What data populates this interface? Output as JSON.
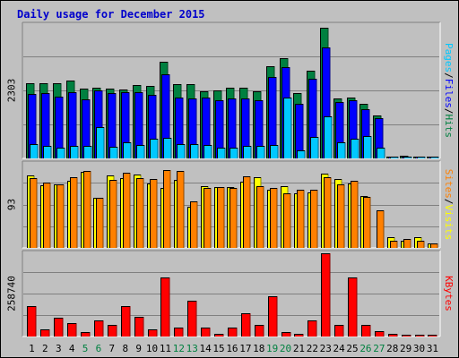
{
  "chart_data": {
    "type": "bar",
    "title": "Daily usage for December 2015",
    "days": [
      "1",
      "2",
      "3",
      "4",
      "5",
      "6",
      "7",
      "8",
      "9",
      "10",
      "11",
      "12",
      "13",
      "14",
      "15",
      "16",
      "17",
      "18",
      "19",
      "20",
      "21",
      "22",
      "23",
      "24",
      "25",
      "26",
      "27",
      "28",
      "29",
      "30",
      "31"
    ],
    "weekend_days": [
      "5",
      "6",
      "12",
      "13",
      "19",
      "20",
      "26",
      "27"
    ],
    "panels": [
      {
        "id": "hits",
        "ymax": 2303,
        "ymax_label": "2303",
        "legend": [
          {
            "text": "Pages",
            "color": "#00c8ff"
          },
          {
            "text": "/",
            "color": "#000000"
          },
          {
            "text": "Files",
            "color": "#0000ff"
          },
          {
            "text": "/",
            "color": "#000000"
          },
          {
            "text": "Hits",
            "color": "#008040"
          }
        ],
        "series": [
          {
            "name": "Hits",
            "color": "#008040",
            "values": [
              1297,
              1297,
              1297,
              1343,
              1204,
              1220,
              1204,
              1189,
              1265,
              1251,
              1666,
              1281,
              1281,
              1159,
              1175,
              1220,
              1220,
              1159,
              1590,
              1731,
              1128,
              1514,
              2263,
              1037,
              1051,
              948,
              744,
              31,
              47,
              31,
              27
            ]
          },
          {
            "name": "Files",
            "color": "#0000ff",
            "values": [
              1112,
              1128,
              1067,
              1143,
              1021,
              1174,
              1128,
              1143,
              1143,
              1097,
              1455,
              1052,
              1036,
              1052,
              1006,
              1036,
              1036,
              1006,
              1405,
              1573,
              947,
              1373,
              1923,
              980,
              1006,
              853,
              689,
              21,
              21,
              21,
              15
            ]
          },
          {
            "name": "Pages",
            "color": "#00c8ff",
            "values": [
              246,
              215,
              184,
              215,
              215,
              544,
              199,
              276,
              230,
              337,
              358,
              246,
              246,
              230,
              184,
              184,
              215,
              215,
              230,
              1052,
              138,
              369,
              720,
              276,
              337,
              382,
              182,
              10,
              15,
              10,
              8
            ]
          }
        ]
      },
      {
        "id": "visits",
        "ymax": 93,
        "ymax_label": "93",
        "legend": [
          {
            "text": "Sites",
            "color": "#ff8000"
          },
          {
            "text": "/",
            "color": "#000000"
          },
          {
            "text": "Visits",
            "color": "#ffff00"
          }
        ],
        "series": [
          {
            "name": "Visits",
            "color": "#ffff00",
            "values": [
              80,
              69,
              70,
              74,
              84,
              55,
              80,
              77,
              81,
              71,
              66,
              75,
              46,
              68,
              67,
              67,
              73,
              78,
              64,
              68,
              60,
              61,
              82,
              76,
              71,
              57,
              0,
              12,
              8,
              12,
              5
            ]
          },
          {
            "name": "Sites",
            "color": "#ff8000",
            "values": [
              77,
              72,
              70,
              78,
              85,
              55,
              75,
              83,
              77,
              76,
              86,
              85,
              51,
              66,
              67,
              66,
              79,
              68,
              66,
              60,
              64,
              64,
              78,
              70,
              74,
              56,
              42,
              8,
              10,
              8,
              5
            ]
          }
        ]
      },
      {
        "id": "kbytes",
        "ymax": 258740,
        "ymax_label": "258740",
        "legend": [
          {
            "text": "KBytes",
            "color": "#ff0000"
          }
        ],
        "series": [
          {
            "name": "KBytes",
            "color": "#ff0000",
            "values": [
              95000,
              22000,
              58000,
              43000,
              15000,
              51000,
              37000,
              95000,
              62000,
              22000,
              183000,
              29000,
              110000,
              29000,
              7000,
              29000,
              73000,
              37000,
              124000,
              15000,
              7000,
              51000,
              258740,
              37000,
              183000,
              37000,
              18000,
              7000,
              5000,
              4000,
              3000
            ]
          }
        ]
      }
    ]
  }
}
